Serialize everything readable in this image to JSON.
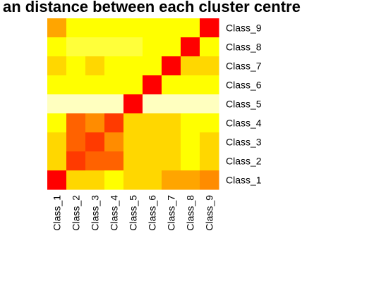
{
  "chart_data": {
    "type": "heatmap",
    "title": "an distance between each cluster centre",
    "row_labels": [
      "Class_9",
      "Class_8",
      "Class_7",
      "Class_6",
      "Class_5",
      "Class_4",
      "Class_3",
      "Class_2",
      "Class_1"
    ],
    "col_labels": [
      "Class_1",
      "Class_2",
      "Class_3",
      "Class_4",
      "Class_5",
      "Class_6",
      "Class_7",
      "Class_8",
      "Class_9"
    ],
    "color_scale": "heat (red = low, yellow = high, pale yellow = highest)",
    "colors": {
      "red": "#FF0000",
      "orange_red": "#FF3A00",
      "dark_orange": "#FF6200",
      "orange": "#FF8C00",
      "amber": "#FFA500",
      "gold": "#FFD700",
      "yellow": "#FFFF00",
      "light_yellow": "#FFFF3A",
      "pale_yellow": "#FFFFBF"
    },
    "values": [
      [
        0.45,
        0.85,
        0.85,
        0.85,
        0.85,
        0.85,
        0.85,
        0.85,
        0.0
      ],
      [
        0.85,
        0.88,
        0.88,
        0.88,
        0.88,
        0.85,
        0.85,
        0.0,
        0.85
      ],
      [
        0.7,
        0.85,
        0.7,
        0.85,
        0.85,
        0.85,
        0.0,
        0.7,
        0.7
      ],
      [
        0.85,
        0.85,
        0.85,
        0.85,
        0.85,
        0.0,
        0.85,
        0.85,
        0.85
      ],
      [
        1.0,
        1.0,
        1.0,
        1.0,
        0.0,
        1.0,
        1.0,
        1.0,
        1.0
      ],
      [
        0.85,
        0.2,
        0.3,
        0.1,
        0.7,
        0.7,
        0.7,
        0.85,
        0.85
      ],
      [
        0.7,
        0.2,
        0.1,
        0.3,
        0.7,
        0.7,
        0.7,
        0.85,
        0.7
      ],
      [
        0.7,
        0.1,
        0.2,
        0.2,
        0.7,
        0.7,
        0.7,
        0.85,
        0.7
      ],
      [
        0.0,
        0.7,
        0.7,
        0.85,
        0.7,
        0.7,
        0.45,
        0.45,
        0.3
      ]
    ]
  }
}
